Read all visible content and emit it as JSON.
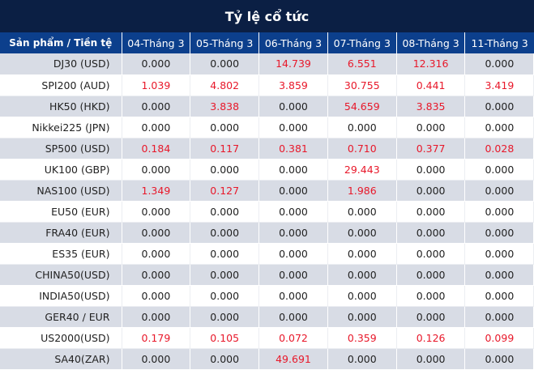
{
  "title": "Tỷ lệ cổ tức",
  "colors": {
    "title_bg": "#0b1f44",
    "header_bg": "#0c3f8c",
    "row_shade": "#d8dce5",
    "positive_value": "#e8182a"
  },
  "table": {
    "headers": [
      "Sản phẩm / Tiền tệ",
      "04-Tháng 3",
      "05-Tháng 3",
      "06-Tháng 3",
      "07-Tháng 3",
      "08-Tháng 3",
      "11-Tháng 3"
    ],
    "rows": [
      {
        "product": "DJ30 (USD)",
        "values": [
          "0.000",
          "0.000",
          "14.739",
          "6.551",
          "12.316",
          "0.000"
        ]
      },
      {
        "product": "SPI200 (AUD)",
        "values": [
          "1.039",
          "4.802",
          "3.859",
          "30.755",
          "0.441",
          "3.419"
        ]
      },
      {
        "product": "HK50 (HKD)",
        "values": [
          "0.000",
          "3.838",
          "0.000",
          "54.659",
          "3.835",
          "0.000"
        ]
      },
      {
        "product": "Nikkei225 (JPN)",
        "values": [
          "0.000",
          "0.000",
          "0.000",
          "0.000",
          "0.000",
          "0.000"
        ]
      },
      {
        "product": "SP500 (USD)",
        "values": [
          "0.184",
          "0.117",
          "0.381",
          "0.710",
          "0.377",
          "0.028"
        ]
      },
      {
        "product": "UK100 (GBP)",
        "values": [
          "0.000",
          "0.000",
          "0.000",
          "29.443",
          "0.000",
          "0.000"
        ]
      },
      {
        "product": "NAS100 (USD)",
        "values": [
          "1.349",
          "0.127",
          "0.000",
          "1.986",
          "0.000",
          "0.000"
        ]
      },
      {
        "product": "EU50 (EUR)",
        "values": [
          "0.000",
          "0.000",
          "0.000",
          "0.000",
          "0.000",
          "0.000"
        ]
      },
      {
        "product": "FRA40 (EUR)",
        "values": [
          "0.000",
          "0.000",
          "0.000",
          "0.000",
          "0.000",
          "0.000"
        ]
      },
      {
        "product": "ES35 (EUR)",
        "values": [
          "0.000",
          "0.000",
          "0.000",
          "0.000",
          "0.000",
          "0.000"
        ]
      },
      {
        "product": "CHINA50(USD)",
        "values": [
          "0.000",
          "0.000",
          "0.000",
          "0.000",
          "0.000",
          "0.000"
        ]
      },
      {
        "product": "INDIA50(USD)",
        "values": [
          "0.000",
          "0.000",
          "0.000",
          "0.000",
          "0.000",
          "0.000"
        ]
      },
      {
        "product": "GER40 / EUR",
        "values": [
          "0.000",
          "0.000",
          "0.000",
          "0.000",
          "0.000",
          "0.000"
        ]
      },
      {
        "product": "US2000(USD)",
        "values": [
          "0.179",
          "0.105",
          "0.072",
          "0.359",
          "0.126",
          "0.099"
        ]
      },
      {
        "product": "SA40(ZAR)",
        "values": [
          "0.000",
          "0.000",
          "49.691",
          "0.000",
          "0.000",
          "0.000"
        ]
      }
    ]
  }
}
